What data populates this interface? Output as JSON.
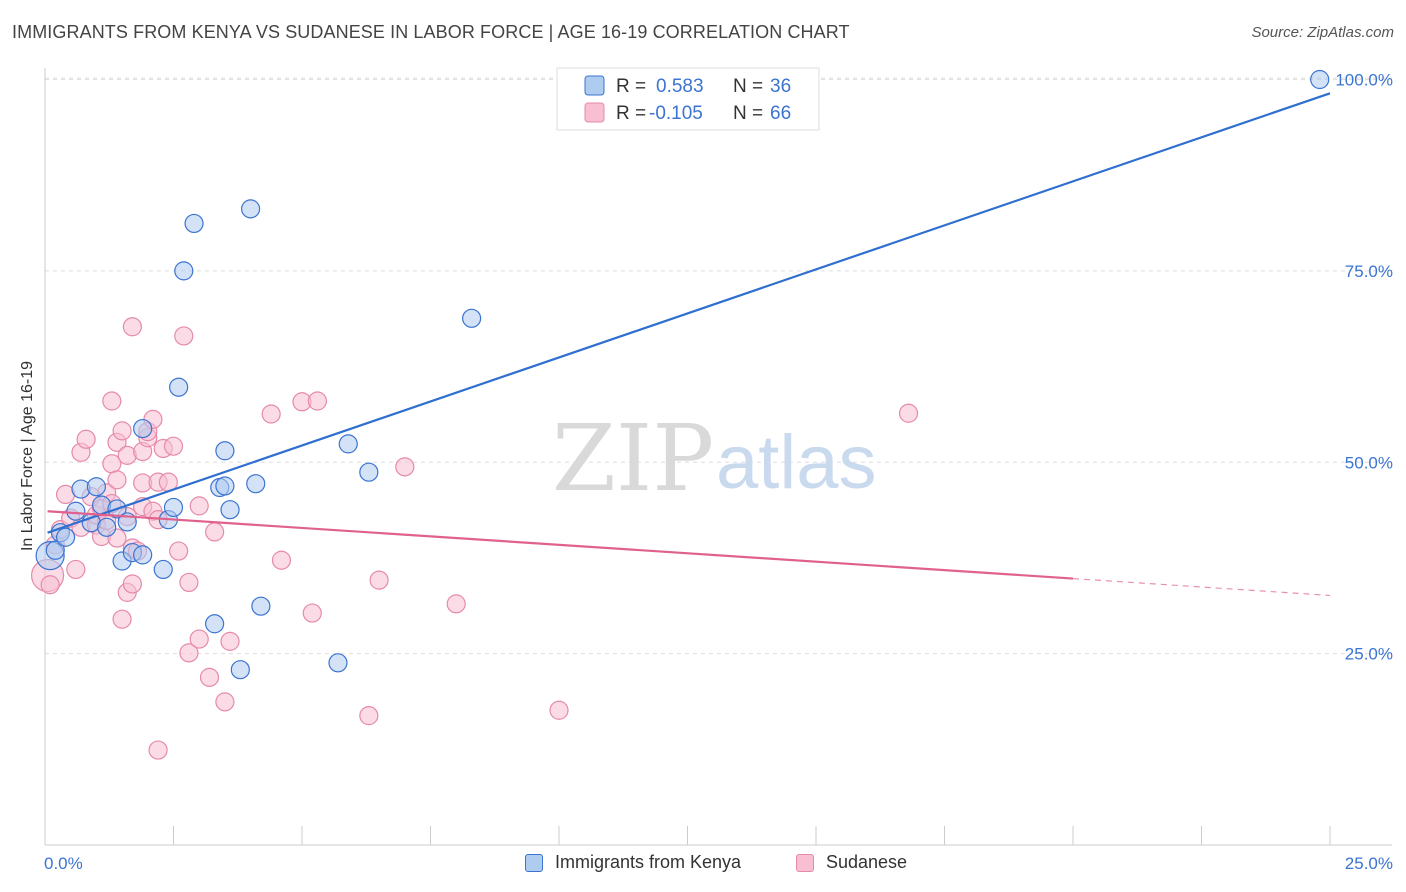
{
  "title": "IMMIGRANTS FROM KENYA VS SUDANESE IN LABOR FORCE | AGE 16-19 CORRELATION CHART",
  "source": "Source: ZipAtlas.com",
  "watermark": {
    "zip": "ZIP",
    "atlas": "atlas"
  },
  "colors": {
    "kenya_fill": "#aecbf0",
    "kenya_stroke": "#3b74d1",
    "kenya_line": "#2f6fd0",
    "sudan_fill": "#f7bfd1",
    "sudan_stroke": "#e68aaa",
    "sudan_line": "#e0618e",
    "grid": "#dddddd",
    "tick_text": "#3b74d1"
  },
  "legend_box": {
    "rows": [
      {
        "r_label": "R =",
        "r_value": "0.583",
        "n_label": "N =",
        "n_value": "36"
      },
      {
        "r_label": "R =",
        "r_value": "-0.105",
        "n_label": "N =",
        "n_value": "66"
      }
    ]
  },
  "bottom_legend": {
    "kenya": "Immigrants from Kenya",
    "sudanese": "Sudanese"
  },
  "chart_data": {
    "type": "scatter",
    "title": "IMMIGRANTS FROM KENYA VS SUDANESE IN LABOR FORCE | AGE 16-19 CORRELATION CHART",
    "xlabel": "",
    "ylabel": "In Labor Force | Age 16-19",
    "xlim": [
      0,
      25
    ],
    "ylim": [
      0,
      105
    ],
    "x_tick_labels": [
      "0.0%",
      "25.0%"
    ],
    "y_tick_labels": [
      "25.0%",
      "50.0%",
      "75.0%",
      "100.0%"
    ],
    "y_ticks": [
      25,
      50,
      75,
      100
    ],
    "grid": true,
    "legend_placement": "top-center",
    "series": [
      {
        "name": "Immigrants from Kenya",
        "R": 0.583,
        "N": 36,
        "trend": {
          "x": [
            0.05,
            25
          ],
          "y": [
            40.8,
            98.2
          ],
          "dashed_from": null
        },
        "points": [
          [
            0.1,
            37.8,
            14
          ],
          [
            0.2,
            38.5,
            9
          ],
          [
            0.3,
            40.8,
            9
          ],
          [
            0.4,
            40.2,
            9
          ],
          [
            0.6,
            43.6,
            9
          ],
          [
            0.7,
            46.5,
            9
          ],
          [
            0.9,
            42.1,
            9
          ],
          [
            1.0,
            46.8,
            9
          ],
          [
            1.1,
            44.4,
            9
          ],
          [
            1.4,
            43.9,
            9
          ],
          [
            1.5,
            37.1,
            9
          ],
          [
            1.6,
            42.2,
            9
          ],
          [
            1.7,
            38.2,
            9
          ],
          [
            1.9,
            37.9,
            9
          ],
          [
            1.9,
            54.4,
            9
          ],
          [
            2.3,
            36.0,
            9
          ],
          [
            2.4,
            42.5,
            9
          ],
          [
            2.5,
            44.1,
            9
          ],
          [
            2.6,
            59.8,
            9
          ],
          [
            2.7,
            75.0,
            9
          ],
          [
            2.9,
            81.2,
            9
          ],
          [
            3.3,
            28.9,
            9
          ],
          [
            3.4,
            46.7,
            9
          ],
          [
            3.5,
            46.9,
            9
          ],
          [
            3.5,
            51.5,
            9
          ],
          [
            3.6,
            43.8,
            9
          ],
          [
            3.8,
            22.9,
            9
          ],
          [
            4.0,
            83.1,
            9
          ],
          [
            4.1,
            47.2,
            9
          ],
          [
            4.2,
            31.2,
            9
          ],
          [
            5.7,
            23.8,
            9
          ],
          [
            5.9,
            52.4,
            9
          ],
          [
            6.3,
            48.7,
            9
          ],
          [
            8.3,
            68.8,
            9
          ],
          [
            24.8,
            100.0,
            9
          ],
          [
            1.2,
            41.5,
            9
          ]
        ]
      },
      {
        "name": "Sudanese",
        "R": -0.105,
        "N": 66,
        "trend": {
          "x": [
            0.05,
            25
          ],
          "y": [
            43.6,
            32.6
          ],
          "dashed_from": 20.0
        },
        "points": [
          [
            0.05,
            35.2,
            16
          ],
          [
            0.1,
            34.0,
            9
          ],
          [
            0.2,
            39.2,
            9
          ],
          [
            0.3,
            41.2,
            9
          ],
          [
            0.4,
            45.8,
            9
          ],
          [
            0.5,
            42.7,
            9
          ],
          [
            0.6,
            36.0,
            9
          ],
          [
            0.7,
            41.5,
            9
          ],
          [
            0.7,
            51.3,
            9
          ],
          [
            0.8,
            53.0,
            9
          ],
          [
            0.9,
            45.5,
            9
          ],
          [
            1.0,
            41.8,
            9
          ],
          [
            1.0,
            43.1,
            9
          ],
          [
            1.1,
            40.3,
            9
          ],
          [
            1.1,
            44.0,
            9
          ],
          [
            1.2,
            42.4,
            9
          ],
          [
            1.2,
            46.0,
            9
          ],
          [
            1.3,
            49.8,
            9
          ],
          [
            1.3,
            44.6,
            9
          ],
          [
            1.4,
            40.1,
            9
          ],
          [
            1.3,
            58.0,
            9
          ],
          [
            1.4,
            47.7,
            9
          ],
          [
            1.4,
            52.6,
            9
          ],
          [
            1.5,
            54.1,
            9
          ],
          [
            1.5,
            29.5,
            9
          ],
          [
            1.6,
            33.0,
            9
          ],
          [
            1.6,
            50.9,
            9
          ],
          [
            1.6,
            42.9,
            9
          ],
          [
            1.7,
            67.7,
            9
          ],
          [
            1.7,
            34.1,
            9
          ],
          [
            1.7,
            38.8,
            9
          ],
          [
            1.8,
            38.4,
            9
          ],
          [
            1.9,
            44.2,
            9
          ],
          [
            1.9,
            51.4,
            9
          ],
          [
            1.9,
            47.3,
            9
          ],
          [
            2.0,
            53.2,
            9
          ],
          [
            2.0,
            54.0,
            9
          ],
          [
            2.1,
            55.6,
            9
          ],
          [
            2.1,
            43.6,
            9
          ],
          [
            2.2,
            42.5,
            9
          ],
          [
            2.2,
            47.4,
            9
          ],
          [
            2.2,
            12.4,
            9
          ],
          [
            2.3,
            51.8,
            9
          ],
          [
            2.4,
            47.4,
            9
          ],
          [
            2.5,
            52.1,
            9
          ],
          [
            2.6,
            38.4,
            9
          ],
          [
            2.7,
            66.5,
            9
          ],
          [
            2.8,
            34.3,
            9
          ],
          [
            2.8,
            25.1,
            9
          ],
          [
            3.0,
            44.3,
            9
          ],
          [
            3.0,
            26.9,
            9
          ],
          [
            3.2,
            21.9,
            9
          ],
          [
            3.3,
            40.9,
            9
          ],
          [
            3.5,
            18.7,
            9
          ],
          [
            3.6,
            26.6,
            9
          ],
          [
            4.4,
            56.3,
            9
          ],
          [
            4.6,
            37.2,
            9
          ],
          [
            5.0,
            57.9,
            9
          ],
          [
            5.2,
            30.3,
            9
          ],
          [
            5.3,
            58.0,
            9
          ],
          [
            6.3,
            16.9,
            9
          ],
          [
            6.5,
            34.6,
            9
          ],
          [
            7.0,
            49.4,
            9
          ],
          [
            8.0,
            31.5,
            9
          ],
          [
            10.0,
            17.6,
            9
          ],
          [
            16.8,
            56.4,
            9
          ]
        ]
      }
    ]
  }
}
